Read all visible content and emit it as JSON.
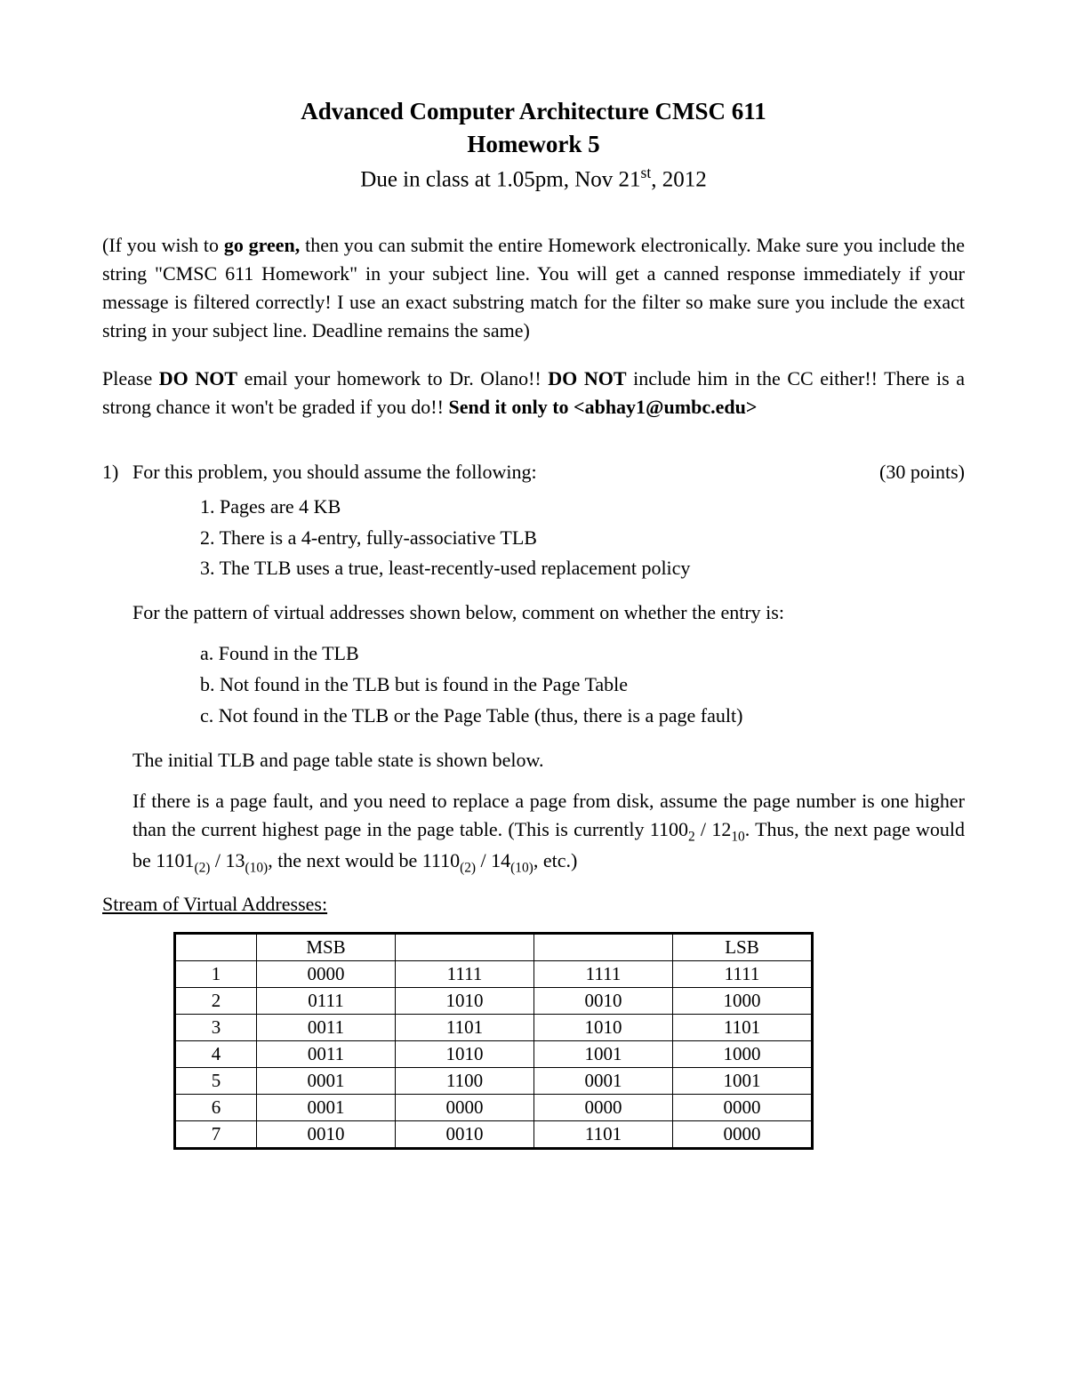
{
  "title": {
    "line1": "Advanced Computer Architecture CMSC 611",
    "line2": "Homework 5",
    "due_prefix": "Due in class at 1.05pm, Nov 21",
    "due_sup": "st",
    "due_suffix": ", 2012"
  },
  "para1": {
    "t1": "(If you wish to ",
    "b1": "go green,",
    "t2": " then you can submit the entire Homework electronically. Make sure you include the string \"CMSC 611 Homework\" in your subject line. You will get a canned response immediately if your message is filtered correctly! I use an exact substring match for the filter so make sure you include the exact string in your subject line. Deadline remains the same)"
  },
  "para2": {
    "t1": "Please ",
    "b1": "DO NOT",
    "t2": " email your homework to Dr. Olano!! ",
    "b2": "DO NOT",
    "t3": " include him in the CC either!! There is a strong chance it won't be graded if you do!! ",
    "b3": "Send it only to <abhay1@umbc.edu>"
  },
  "q1": {
    "num": "1)",
    "stem": "For this problem, you should assume the following:",
    "points": "(30 points)",
    "assumptions": [
      "1.   Pages are 4 KB",
      "2.   There is a 4-entry, fully-associative TLB",
      "3.   The TLB uses a true, least-recently-used replacement policy"
    ],
    "pattern_intro": "For the pattern of virtual addresses shown below, comment on whether the entry is:",
    "abc": [
      "a.   Found in the TLB",
      "b.   Not found in the TLB but is found in the Page Table",
      "c.   Not found in the TLB or the Page Table (thus, there is a page fault)"
    ],
    "initial_state": "The initial TLB and page table state is shown below.",
    "pagefault": {
      "t1": "If there is a page fault, and you need to replace a page from disk, assume the page number is one higher than the current highest page in the page table. (This is currently 1100",
      "s1": "2",
      "t2": " / 12",
      "s2": "10",
      "t3": ". Thus, the next page would be 1101",
      "s3": "(2)",
      "t4": " / 13",
      "s4": "(10)",
      "t5": ", the next would be 1110",
      "s5": "(2)",
      "t6": " / 14",
      "s6": "(10)",
      "t7": ", etc.)"
    },
    "stream_heading": "Stream of Virtual Addresses:"
  },
  "table": {
    "header": [
      "",
      "MSB",
      "",
      "",
      "LSB"
    ],
    "rows": [
      [
        "1",
        "0000",
        "1111",
        "1111",
        "1111"
      ],
      [
        "2",
        "0111",
        "1010",
        "0010",
        "1000"
      ],
      [
        "3",
        "0011",
        "1101",
        "1010",
        "1101"
      ],
      [
        "4",
        "0011",
        "1010",
        "1001",
        "1000"
      ],
      [
        "5",
        "0001",
        "1100",
        "0001",
        "1001"
      ],
      [
        "6",
        "0001",
        "0000",
        "0000",
        "0000"
      ],
      [
        "7",
        "0010",
        "0010",
        "1101",
        "0000"
      ]
    ]
  }
}
